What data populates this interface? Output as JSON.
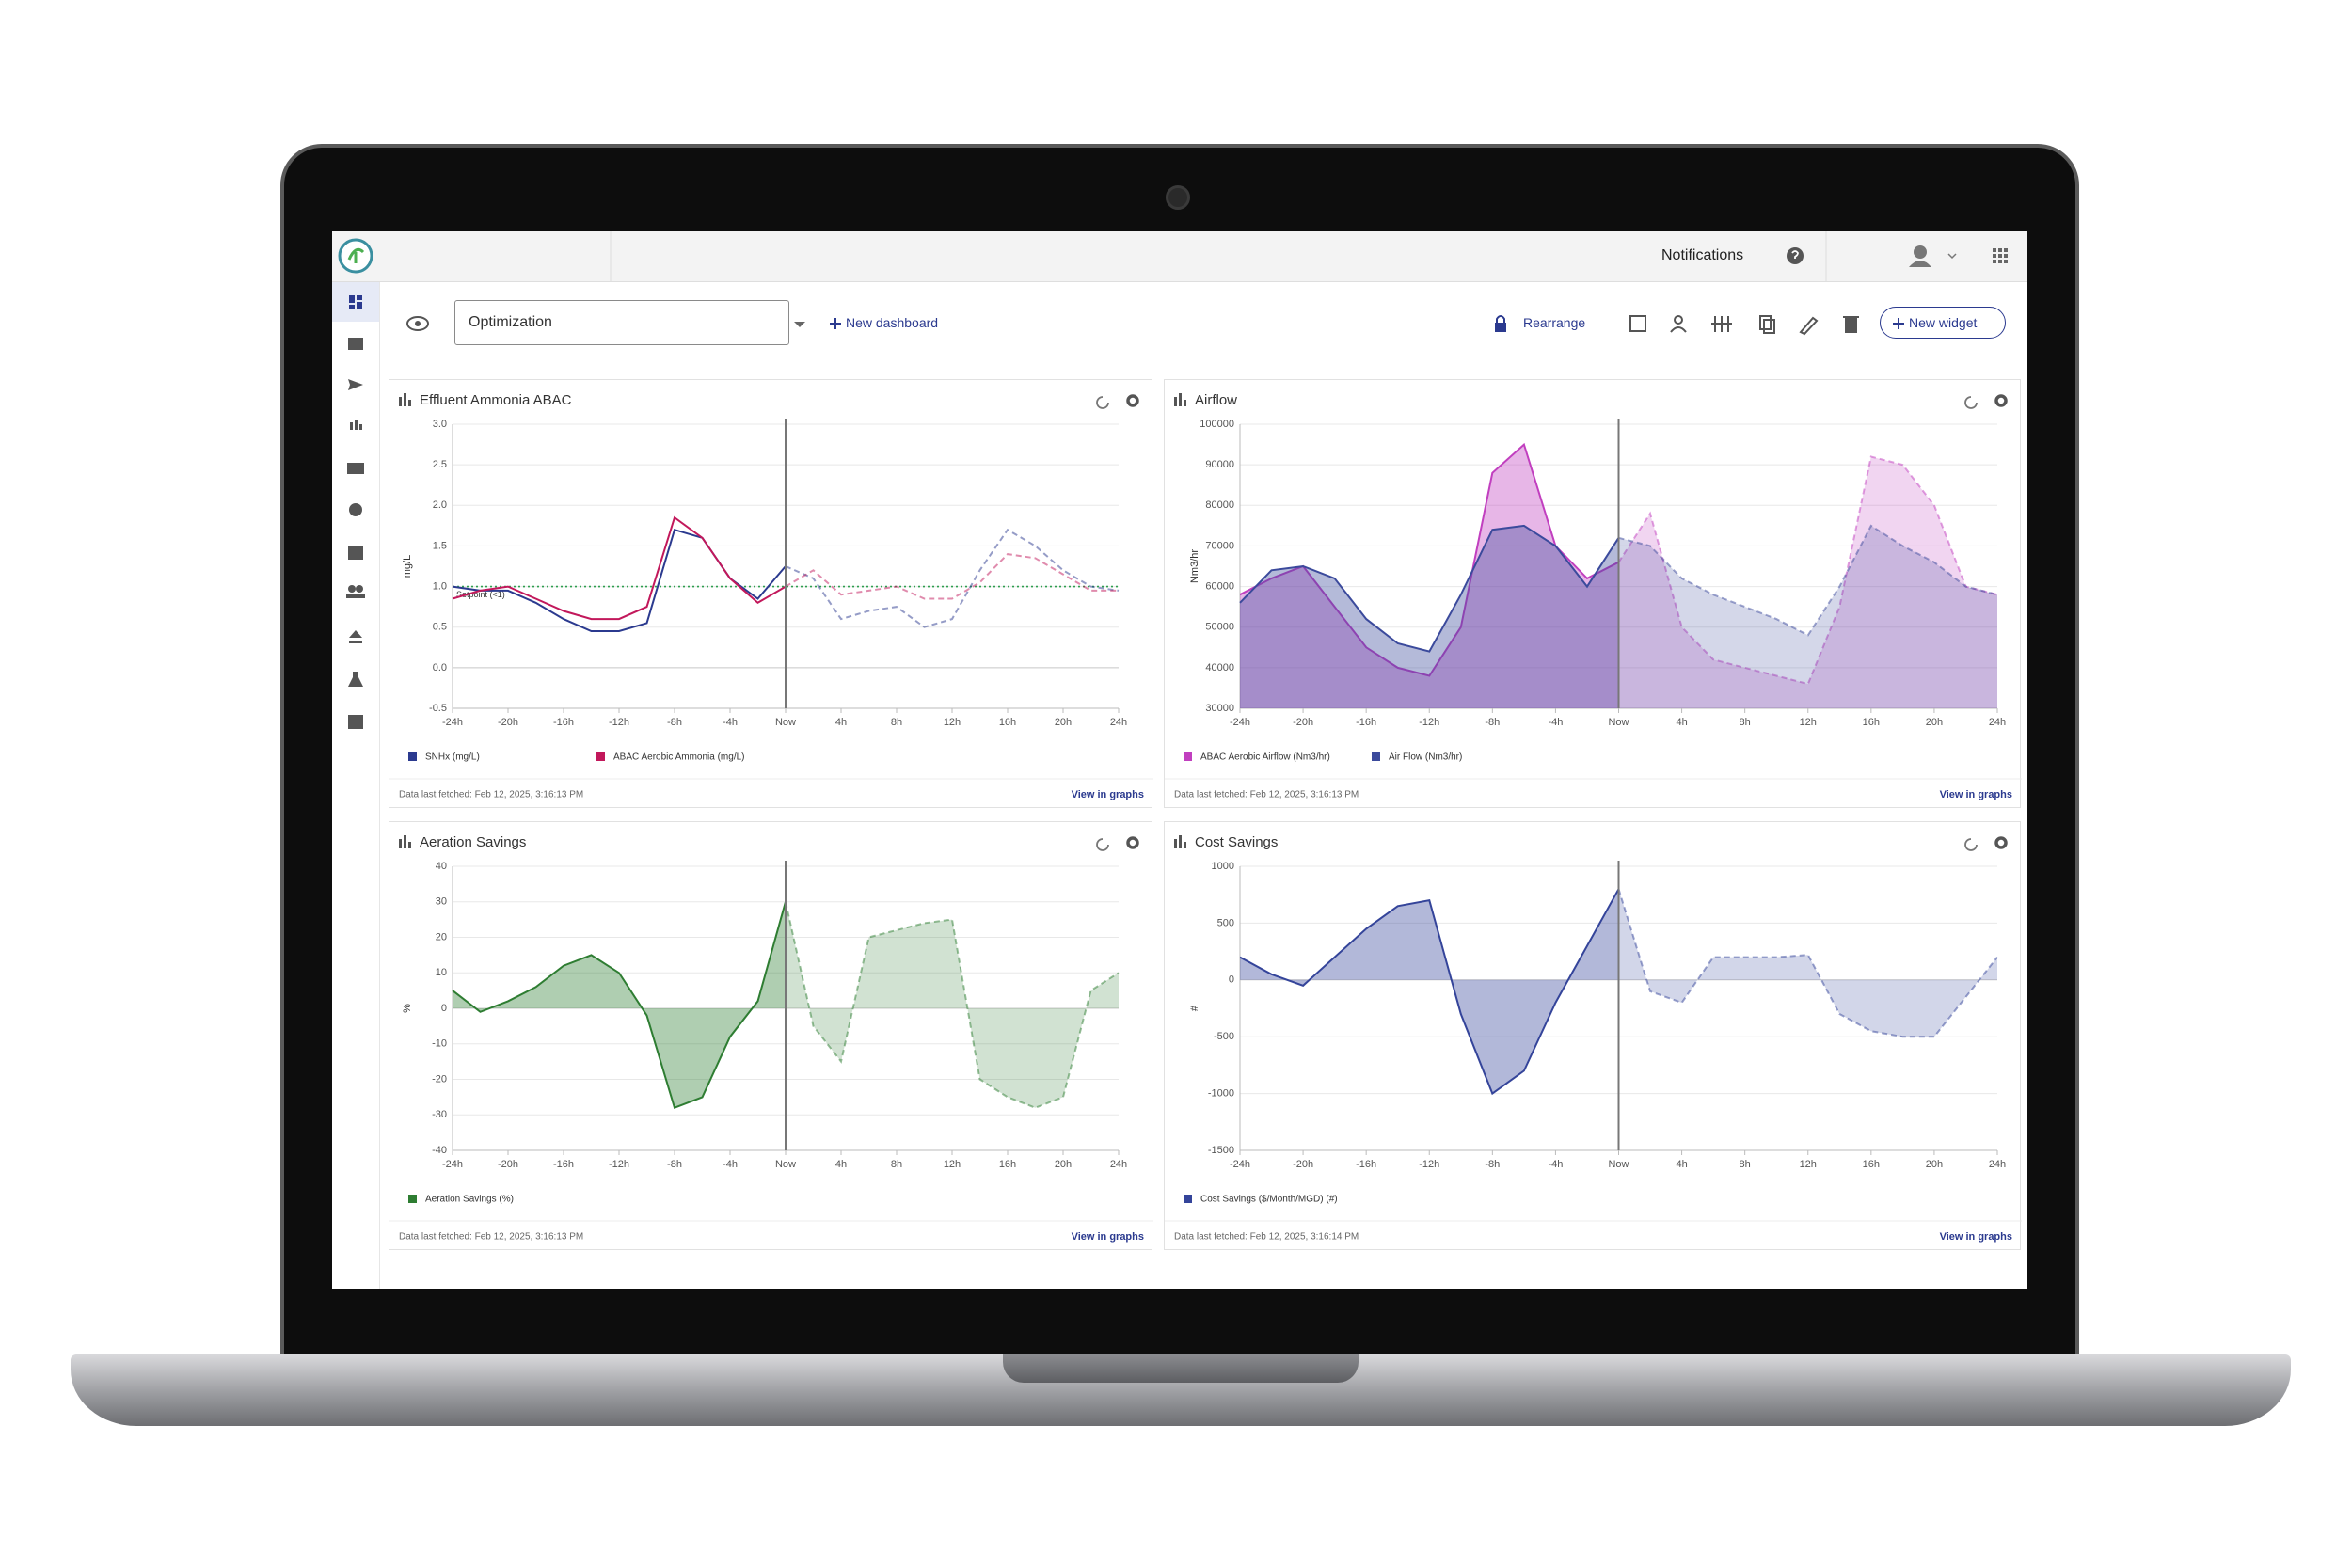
{
  "header": {
    "notifications": "Notifications"
  },
  "toolbar": {
    "dashboard": "Optimization",
    "new_dashboard": "New dashboard",
    "rearrange": "Rearrange",
    "new_widget": "New widget"
  },
  "chart_data": [
    {
      "type": "line",
      "title": "Effluent Ammonia ABAC",
      "ylabel": "mg/L",
      "x": [
        -24,
        -22,
        -20,
        -18,
        -16,
        -14,
        -12,
        -10,
        -8,
        -6,
        -4,
        -2,
        0,
        2,
        4,
        6,
        8,
        10,
        12,
        14,
        16,
        18,
        20,
        22,
        24
      ],
      "xlim": [
        -24,
        24
      ],
      "xticks": [
        {
          "value": -24,
          "label": "-24h"
        },
        {
          "value": -20,
          "label": "-20h"
        },
        {
          "value": -16,
          "label": "-16h"
        },
        {
          "value": -12,
          "label": "-12h"
        },
        {
          "value": -8,
          "label": "-8h"
        },
        {
          "value": -4,
          "label": "-4h"
        },
        {
          "value": 0,
          "label": "Now"
        },
        {
          "value": 4,
          "label": "4h"
        },
        {
          "value": 8,
          "label": "8h"
        },
        {
          "value": 12,
          "label": "12h"
        },
        {
          "value": 16,
          "label": "16h"
        },
        {
          "value": 20,
          "label": "20h"
        },
        {
          "value": 24,
          "label": "24h"
        }
      ],
      "ylim": [
        -0.5,
        3
      ],
      "yticks": [
        -0.5,
        {
          "value": 0,
          "label": "0.0"
        },
        0.5,
        {
          "value": 1,
          "label": "1.0"
        },
        1.5,
        {
          "value": 2,
          "label": "2.0"
        },
        2.5,
        {
          "value": 3,
          "label": "3.0"
        }
      ],
      "grid": true,
      "reference_line": {
        "value": 1,
        "label": "Setpoint (<1)",
        "color": "#2e9e4f"
      },
      "series": [
        {
          "name": "SNHx (mg/L)",
          "color": "#2b3a8f",
          "values": [
            1.0,
            0.95,
            0.95,
            0.8,
            0.6,
            0.45,
            0.45,
            0.55,
            1.7,
            1.6,
            1.1,
            0.85,
            1.25,
            1.1,
            0.6,
            0.7,
            0.75,
            0.5,
            0.6,
            1.2,
            1.7,
            1.5,
            1.2,
            1.0,
            0.95
          ]
        },
        {
          "name": "ABAC Aerobic Ammonia (mg/L)",
          "color": "#c2185b",
          "values": [
            0.85,
            0.95,
            1.0,
            0.85,
            0.7,
            0.6,
            0.6,
            0.75,
            1.85,
            1.6,
            1.1,
            0.8,
            1.0,
            1.2,
            0.9,
            0.95,
            1.0,
            0.85,
            0.85,
            1.05,
            1.4,
            1.35,
            1.15,
            0.95,
            0.95
          ]
        }
      ],
      "footnote": "Data last fetched: Feb 12, 2025, 3:16:13 PM",
      "link": "View in graphs"
    },
    {
      "type": "area",
      "title": "Airflow",
      "ylabel": "Nm3/hr",
      "x": [
        -24,
        -22,
        -20,
        -18,
        -16,
        -14,
        -12,
        -10,
        -8,
        -6,
        -4,
        -2,
        0,
        2,
        4,
        6,
        8,
        10,
        12,
        14,
        16,
        18,
        20,
        22,
        24
      ],
      "xlim": [
        -24,
        24
      ],
      "xticks": [
        {
          "value": -24,
          "label": "-24h"
        },
        {
          "value": -20,
          "label": "-20h"
        },
        {
          "value": -16,
          "label": "-16h"
        },
        {
          "value": -12,
          "label": "-12h"
        },
        {
          "value": -8,
          "label": "-8h"
        },
        {
          "value": -4,
          "label": "-4h"
        },
        {
          "value": 0,
          "label": "Now"
        },
        {
          "value": 4,
          "label": "4h"
        },
        {
          "value": 8,
          "label": "8h"
        },
        {
          "value": 12,
          "label": "12h"
        },
        {
          "value": 16,
          "label": "16h"
        },
        {
          "value": 20,
          "label": "20h"
        },
        {
          "value": 24,
          "label": "24h"
        }
      ],
      "ylim": [
        30000,
        100000
      ],
      "yticks": [
        30000,
        40000,
        50000,
        60000,
        70000,
        80000,
        90000,
        100000
      ],
      "grid": true,
      "series": [
        {
          "name": "ABAC Aerobic Airflow (Nm3/hr)",
          "color": "#c13fbf",
          "values": [
            58000,
            62000,
            65000,
            55000,
            45000,
            40000,
            38000,
            50000,
            88000,
            95000,
            70000,
            62000,
            66000,
            78000,
            50000,
            42000,
            40000,
            38000,
            36000,
            55000,
            92000,
            90000,
            80000,
            60000,
            58000
          ]
        },
        {
          "name": "Air Flow (Nm3/hr)",
          "color": "#3b4a9c",
          "values": [
            56000,
            64000,
            65000,
            62000,
            52000,
            46000,
            44000,
            58000,
            74000,
            75000,
            70000,
            60000,
            72000,
            70000,
            62000,
            58000,
            55000,
            52000,
            48000,
            60000,
            75000,
            70000,
            66000,
            60000,
            58000
          ]
        }
      ],
      "footnote": "Data last fetched: Feb 12, 2025, 3:16:13 PM",
      "link": "View in graphs"
    },
    {
      "type": "area",
      "title": "Aeration Savings",
      "ylabel": "%",
      "x": [
        -24,
        -22,
        -20,
        -18,
        -16,
        -14,
        -12,
        -10,
        -8,
        -6,
        -4,
        -2,
        0,
        2,
        4,
        6,
        8,
        10,
        12,
        14,
        16,
        18,
        20,
        22,
        24
      ],
      "xlim": [
        -24,
        24
      ],
      "xticks": [
        {
          "value": -24,
          "label": "-24h"
        },
        {
          "value": -20,
          "label": "-20h"
        },
        {
          "value": -16,
          "label": "-16h"
        },
        {
          "value": -12,
          "label": "-12h"
        },
        {
          "value": -8,
          "label": "-8h"
        },
        {
          "value": -4,
          "label": "-4h"
        },
        {
          "value": 0,
          "label": "Now"
        },
        {
          "value": 4,
          "label": "4h"
        },
        {
          "value": 8,
          "label": "8h"
        },
        {
          "value": 12,
          "label": "12h"
        },
        {
          "value": 16,
          "label": "16h"
        },
        {
          "value": 20,
          "label": "20h"
        },
        {
          "value": 24,
          "label": "24h"
        }
      ],
      "ylim": [
        -40,
        40
      ],
      "yticks": [
        -40,
        -30,
        -20,
        -10,
        0,
        10,
        20,
        30,
        40
      ],
      "grid": true,
      "series": [
        {
          "name": "Aeration Savings (%)",
          "color": "#2e7d32",
          "values": [
            5,
            -1,
            2,
            6,
            12,
            15,
            10,
            -2,
            -28,
            -25,
            -8,
            2,
            30,
            -5,
            -15,
            20,
            22,
            24,
            25,
            -20,
            -25,
            -28,
            -25,
            5,
            10
          ]
        }
      ],
      "footnote": "Data last fetched: Feb 12, 2025, 3:16:13 PM",
      "link": "View in graphs"
    },
    {
      "type": "area",
      "title": "Cost Savings",
      "ylabel": "#",
      "x": [
        -24,
        -22,
        -20,
        -18,
        -16,
        -14,
        -12,
        -10,
        -8,
        -6,
        -4,
        -2,
        0,
        2,
        4,
        6,
        8,
        10,
        12,
        14,
        16,
        18,
        20,
        22,
        24
      ],
      "xlim": [
        -24,
        24
      ],
      "xticks": [
        {
          "value": -24,
          "label": "-24h"
        },
        {
          "value": -20,
          "label": "-20h"
        },
        {
          "value": -16,
          "label": "-16h"
        },
        {
          "value": -12,
          "label": "-12h"
        },
        {
          "value": -8,
          "label": "-8h"
        },
        {
          "value": -4,
          "label": "-4h"
        },
        {
          "value": 0,
          "label": "Now"
        },
        {
          "value": 4,
          "label": "4h"
        },
        {
          "value": 8,
          "label": "8h"
        },
        {
          "value": 12,
          "label": "12h"
        },
        {
          "value": 16,
          "label": "16h"
        },
        {
          "value": 20,
          "label": "20h"
        },
        {
          "value": 24,
          "label": "24h"
        }
      ],
      "ylim": [
        -1500,
        1000
      ],
      "yticks": [
        -1500,
        -1000,
        -500,
        0,
        500,
        1000
      ],
      "grid": true,
      "series": [
        {
          "name": "Cost Savings ($/Month/MGD) (#)",
          "color": "#34449a",
          "values": [
            200,
            50,
            -50,
            200,
            450,
            650,
            700,
            -300,
            -1000,
            -800,
            -200,
            300,
            800,
            -100,
            -200,
            200,
            200,
            200,
            220,
            -300,
            -450,
            -500,
            -500,
            -150,
            200
          ]
        }
      ],
      "footnote": "Data last fetched: Feb 12, 2025, 3:16:14 PM",
      "link": "View in graphs"
    }
  ]
}
